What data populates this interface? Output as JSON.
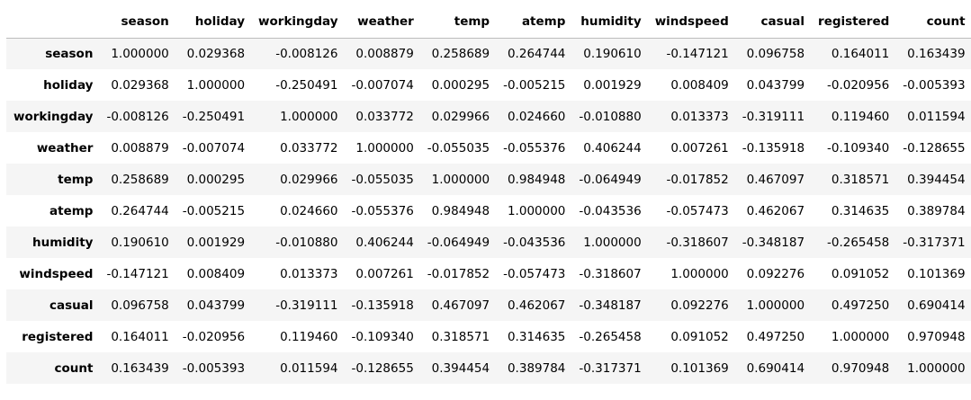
{
  "table": {
    "columns": [
      "season",
      "holiday",
      "workingday",
      "weather",
      "temp",
      "atemp",
      "humidity",
      "windspeed",
      "casual",
      "registered",
      "count"
    ],
    "rows": [
      {
        "label": "season",
        "values": [
          "1.000000",
          "0.029368",
          "-0.008126",
          "0.008879",
          "0.258689",
          "0.264744",
          "0.190610",
          "-0.147121",
          "0.096758",
          "0.164011",
          "0.163439"
        ]
      },
      {
        "label": "holiday",
        "values": [
          "0.029368",
          "1.000000",
          "-0.250491",
          "-0.007074",
          "0.000295",
          "-0.005215",
          "0.001929",
          "0.008409",
          "0.043799",
          "-0.020956",
          "-0.005393"
        ]
      },
      {
        "label": "workingday",
        "values": [
          "-0.008126",
          "-0.250491",
          "1.000000",
          "0.033772",
          "0.029966",
          "0.024660",
          "-0.010880",
          "0.013373",
          "-0.319111",
          "0.119460",
          "0.011594"
        ]
      },
      {
        "label": "weather",
        "values": [
          "0.008879",
          "-0.007074",
          "0.033772",
          "1.000000",
          "-0.055035",
          "-0.055376",
          "0.406244",
          "0.007261",
          "-0.135918",
          "-0.109340",
          "-0.128655"
        ]
      },
      {
        "label": "temp",
        "values": [
          "0.258689",
          "0.000295",
          "0.029966",
          "-0.055035",
          "1.000000",
          "0.984948",
          "-0.064949",
          "-0.017852",
          "0.467097",
          "0.318571",
          "0.394454"
        ]
      },
      {
        "label": "atemp",
        "values": [
          "0.264744",
          "-0.005215",
          "0.024660",
          "-0.055376",
          "0.984948",
          "1.000000",
          "-0.043536",
          "-0.057473",
          "0.462067",
          "0.314635",
          "0.389784"
        ]
      },
      {
        "label": "humidity",
        "values": [
          "0.190610",
          "0.001929",
          "-0.010880",
          "0.406244",
          "-0.064949",
          "-0.043536",
          "1.000000",
          "-0.318607",
          "-0.348187",
          "-0.265458",
          "-0.317371"
        ]
      },
      {
        "label": "windspeed",
        "values": [
          "-0.147121",
          "0.008409",
          "0.013373",
          "0.007261",
          "-0.017852",
          "-0.057473",
          "-0.318607",
          "1.000000",
          "0.092276",
          "0.091052",
          "0.101369"
        ]
      },
      {
        "label": "casual",
        "values": [
          "0.096758",
          "0.043799",
          "-0.319111",
          "-0.135918",
          "0.467097",
          "0.462067",
          "-0.348187",
          "0.092276",
          "1.000000",
          "0.497250",
          "0.690414"
        ]
      },
      {
        "label": "registered",
        "values": [
          "0.164011",
          "-0.020956",
          "0.119460",
          "-0.109340",
          "0.318571",
          "0.314635",
          "-0.265458",
          "0.091052",
          "0.497250",
          "1.000000",
          "0.970948"
        ]
      },
      {
        "label": "count",
        "values": [
          "0.163439",
          "-0.005393",
          "0.011594",
          "-0.128655",
          "0.394454",
          "0.389784",
          "-0.317371",
          "0.101369",
          "0.690414",
          "0.970948",
          "1.000000"
        ]
      }
    ]
  }
}
